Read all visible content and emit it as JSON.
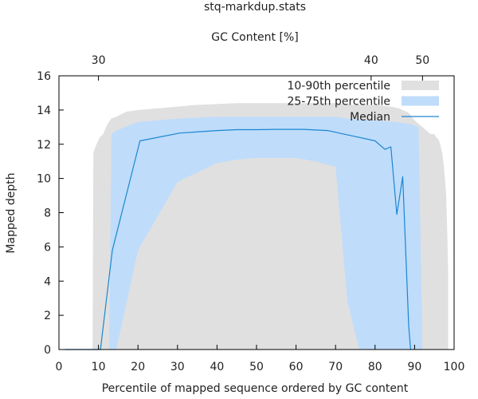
{
  "chart_data": {
    "type": "area",
    "title": "stq-markdup.stats",
    "xlabel": "Percentile of mapped sequence ordered by GC content",
    "ylabel": "Mapped depth",
    "x2label": "GC Content [%]",
    "xlim": [
      0,
      100
    ],
    "ylim": [
      0,
      16
    ],
    "x_ticks": [
      0,
      10,
      20,
      30,
      40,
      50,
      60,
      70,
      80,
      90,
      100
    ],
    "y_ticks": [
      0,
      2,
      4,
      6,
      8,
      10,
      12,
      14,
      16
    ],
    "x2_ticks": [
      {
        "label": "30",
        "x": 10
      },
      {
        "label": "40",
        "x": 79
      },
      {
        "label": "50",
        "x": 92
      }
    ],
    "grid": false,
    "legend_position": "top-right",
    "legend": [
      {
        "label": "10-90th percentile",
        "color": "#e0e0e0",
        "kind": "box"
      },
      {
        "label": "25-75th percentile",
        "color": "#bfdcfb",
        "kind": "box"
      },
      {
        "label": "Median",
        "color": "#1a86d0",
        "kind": "line"
      }
    ],
    "series": [
      {
        "name": "10-90th percentile",
        "color": "#e0e0e0",
        "kind": "band",
        "x": [
          8.5,
          8.7,
          9.5,
          10.3,
          11.2,
          12.1,
          13.2,
          14.5,
          17,
          20,
          25,
          30,
          35,
          40,
          45,
          50,
          55,
          60,
          65,
          70,
          72,
          75,
          78,
          80,
          82,
          84,
          86,
          87,
          88,
          88.7,
          89.2,
          90,
          91,
          92,
          93,
          94,
          95,
          95.5,
          96,
          96.5,
          97,
          97.5,
          98,
          98.3,
          98.5
        ],
        "upper": [
          0,
          11.5,
          12,
          12.4,
          12.6,
          13.1,
          13.5,
          13.6,
          13.9,
          14.0,
          14.1,
          14.2,
          14.3,
          14.35,
          14.4,
          14.4,
          14.4,
          14.4,
          14.4,
          14.4,
          14.35,
          14.3,
          14.3,
          14.3,
          14.25,
          14.2,
          14.1,
          14.0,
          13.9,
          13.8,
          13.6,
          13.4,
          13.2,
          13.0,
          12.8,
          12.6,
          12.6,
          12.4,
          12.3,
          12.0,
          11.5,
          10.5,
          9.0,
          6.5,
          4.5
        ],
        "lower": [
          0,
          0,
          0,
          0,
          0,
          0,
          0,
          0,
          0,
          0,
          0,
          0,
          0,
          0,
          0,
          0,
          0,
          0,
          0,
          0,
          0,
          0,
          0,
          0,
          0,
          0,
          0,
          0,
          0,
          0,
          0,
          0,
          0,
          0,
          0,
          0,
          0,
          0,
          0,
          0,
          0,
          0,
          0,
          0,
          0
        ]
      },
      {
        "name": "25-75th percentile",
        "color": "#bfdcfb",
        "kind": "band",
        "x": [
          12.7,
          13.3,
          14.5,
          20,
          30,
          40,
          45,
          50,
          55,
          60,
          65,
          68,
          70,
          73,
          76,
          80,
          85,
          87,
          88.5,
          90,
          91,
          92
        ],
        "upper": [
          0,
          12.6,
          12.8,
          13.3,
          13.5,
          13.6,
          13.6,
          13.6,
          13.6,
          13.6,
          13.6,
          13.6,
          13.6,
          13.5,
          13.45,
          13.4,
          13.3,
          13.25,
          13.2,
          13.1,
          13.0,
          0
        ],
        "lower": [
          0,
          0,
          0,
          5.8,
          9.8,
          10.9,
          11.1,
          11.2,
          11.2,
          11.2,
          11.0,
          10.8,
          10.7,
          2.8,
          0,
          0,
          0,
          0,
          0,
          0,
          0,
          0
        ]
      },
      {
        "name": "Median",
        "color": "#1a86d0",
        "kind": "line",
        "x": [
          1.5,
          10.5,
          13.5,
          20.5,
          30.5,
          40,
          45,
          50,
          55,
          62,
          68,
          72,
          75,
          80,
          82.5,
          84,
          85.5,
          87,
          88.5,
          89
        ],
        "values": [
          0,
          0,
          5.8,
          12.2,
          12.65,
          12.8,
          12.85,
          12.85,
          12.87,
          12.87,
          12.8,
          12.6,
          12.45,
          12.2,
          11.7,
          11.85,
          7.9,
          10.1,
          1.4,
          0
        ]
      }
    ]
  }
}
